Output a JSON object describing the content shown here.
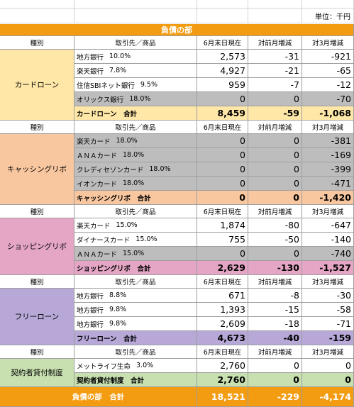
{
  "unit": "単位：千円",
  "title": "負債の部",
  "colors": {
    "orange": "#f39c12",
    "card_loan": "#ffe7a8",
    "cashing": "#f9c79f",
    "shopping": "#e5a6c5",
    "free_loan": "#b7a8d8",
    "contract": "#c8dfb0",
    "gray": "#bdbdbd"
  },
  "headers": {
    "type": "種別",
    "partner": "取引先／商品",
    "end": "6月末日現在",
    "mom": "対前月増減",
    "vs3": "対3月増減"
  },
  "sections": [
    {
      "name": "カードローン",
      "color": "#ffe7a8",
      "rows": [
        {
          "label": "地方銀行",
          "rate": "10.0%",
          "end": "2,573",
          "mom": "-31",
          "vs3": "-921",
          "gray": false
        },
        {
          "label": "楽天銀行",
          "rate": "7.8%",
          "end": "4,927",
          "mom": "-21",
          "vs3": "-65",
          "gray": false
        },
        {
          "label": "住信SBIネット銀行",
          "rate": "9.5%",
          "end": "959",
          "mom": "-7",
          "vs3": "-12",
          "gray": false
        },
        {
          "label": "オリックス銀行",
          "rate": "18.0%",
          "end": "0",
          "mom": "0",
          "vs3": "-70",
          "gray": true
        }
      ],
      "total": {
        "label": "カードローン　合計",
        "end": "8,459",
        "mom": "-59",
        "vs3": "-1,068"
      }
    },
    {
      "name": "キャッシングリボ",
      "color": "#f9c79f",
      "rows": [
        {
          "label": "楽天カード",
          "rate": "18.0%",
          "end": "0",
          "mom": "0",
          "vs3": "-381",
          "gray": true
        },
        {
          "label": "ＡＮＡカード",
          "rate": "18.0%",
          "end": "0",
          "mom": "0",
          "vs3": "-169",
          "gray": true
        },
        {
          "label": "クレディセゾンカード",
          "rate": "18.0%",
          "end": "0",
          "mom": "0",
          "vs3": "-399",
          "gray": true
        },
        {
          "label": "イオンカード",
          "rate": "18.0%",
          "end": "0",
          "mom": "0",
          "vs3": "-471",
          "gray": true
        }
      ],
      "total": {
        "label": "キャッシングリボ　合計",
        "end": "0",
        "mom": "0",
        "vs3": "-1,420"
      }
    },
    {
      "name": "ショッピングリボ",
      "color": "#e5a6c5",
      "rows": [
        {
          "label": "楽天カード",
          "rate": "15.0%",
          "end": "1,874",
          "mom": "-80",
          "vs3": "-647",
          "gray": false
        },
        {
          "label": "ダイナースカード",
          "rate": "15.0%",
          "end": "755",
          "mom": "-50",
          "vs3": "-140",
          "gray": false
        },
        {
          "label": "ＡＮＡカード",
          "rate": "15.0%",
          "end": "0",
          "mom": "0",
          "vs3": "-740",
          "gray": true
        }
      ],
      "total": {
        "label": "ショッピングリボ　合計",
        "end": "2,629",
        "mom": "-130",
        "vs3": "-1,527"
      }
    },
    {
      "name": "フリーローン",
      "color": "#b7a8d8",
      "rows": [
        {
          "label": "地方銀行",
          "rate": "8.8%",
          "end": "671",
          "mom": "-8",
          "vs3": "-30",
          "gray": false
        },
        {
          "label": "地方銀行",
          "rate": "9.8%",
          "end": "1,393",
          "mom": "-15",
          "vs3": "-58",
          "gray": false
        },
        {
          "label": "地方銀行",
          "rate": "9.8%",
          "end": "2,609",
          "mom": "-18",
          "vs3": "-71",
          "gray": false
        }
      ],
      "total": {
        "label": "フリーローン　合計",
        "end": "4,673",
        "mom": "-40",
        "vs3": "-159"
      }
    },
    {
      "name": "契約者貸付制度",
      "color": "#c8dfb0",
      "rows": [
        {
          "label": "メットライフ生命",
          "rate": "3.0%",
          "end": "2,760",
          "mom": "0",
          "vs3": "0",
          "gray": false
        }
      ],
      "total": {
        "label": "契約者貸付制度　合計",
        "end": "2,760",
        "mom": "0",
        "vs3": "0"
      }
    }
  ],
  "grand_total": {
    "label": "負債の部　合計",
    "end": "18,521",
    "mom": "-229",
    "vs3": "-4,174"
  }
}
